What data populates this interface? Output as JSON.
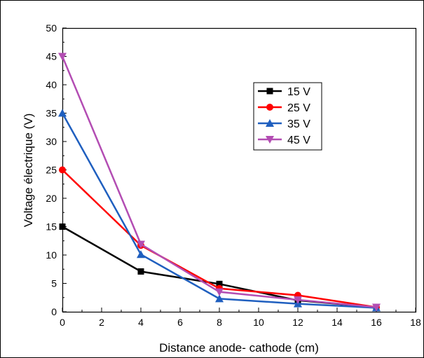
{
  "chart_data": {
    "type": "line",
    "title": "",
    "xlabel": "Distance anode- cathode (cm)",
    "ylabel": "Voltage électrique (V)",
    "xlim": [
      0,
      18
    ],
    "ylim": [
      0,
      50
    ],
    "xticks": [
      0,
      2,
      4,
      6,
      8,
      10,
      12,
      14,
      16,
      18
    ],
    "yticks": [
      0,
      5,
      10,
      15,
      20,
      25,
      30,
      35,
      40,
      45,
      50
    ],
    "grid": false,
    "legend_position": "top-right",
    "x": [
      0,
      4,
      8,
      12,
      16
    ],
    "series": [
      {
        "name": "15 V",
        "values": [
          15,
          7.1,
          4.9,
          2.0,
          0.8
        ],
        "color": "#000000",
        "marker": "square"
      },
      {
        "name": "25 V",
        "values": [
          25,
          11.7,
          4.1,
          2.9,
          0.8
        ],
        "color": "#ff0000",
        "marker": "circle"
      },
      {
        "name": "35 V",
        "values": [
          35,
          10.1,
          2.3,
          1.4,
          0.7
        ],
        "color": "#1f5fbf",
        "marker": "triangle-up"
      },
      {
        "name": "45 V",
        "values": [
          45,
          11.9,
          3.5,
          2.1,
          0.8
        ],
        "color": "#b34db3",
        "marker": "triangle-down"
      }
    ]
  }
}
